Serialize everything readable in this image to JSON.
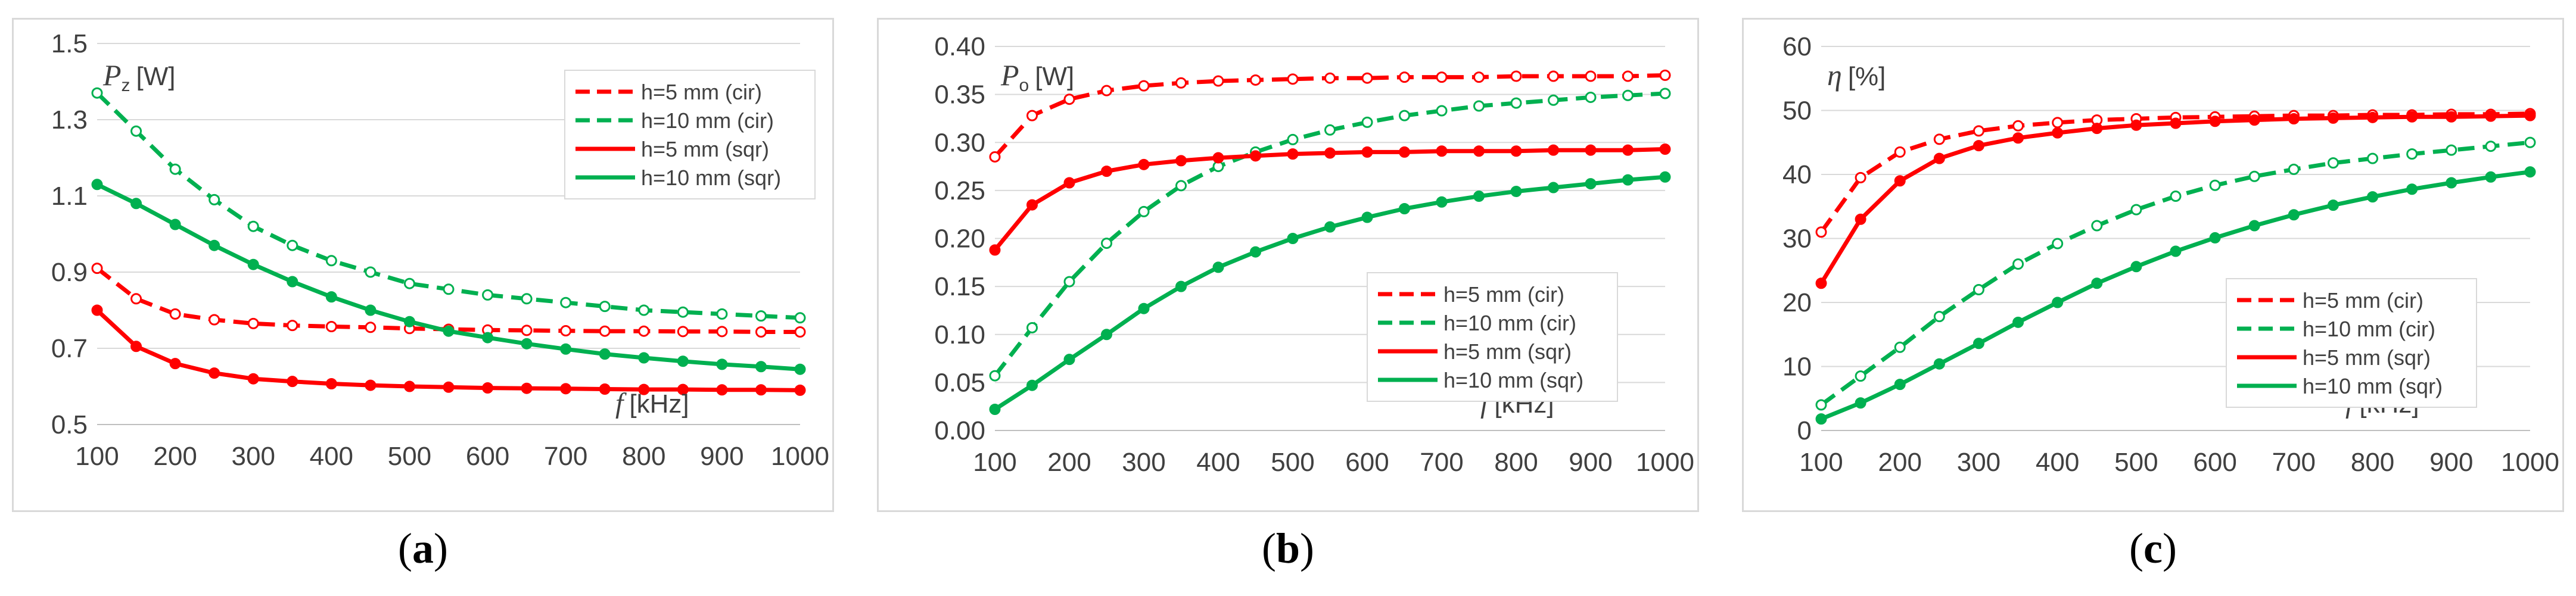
{
  "chart_data": [
    {
      "type": "line",
      "panel_label": "a",
      "ylabel_symbol": "P",
      "ylabel_sub": "z",
      "ylabel_unit": "[W]",
      "xlabel_symbol": "f",
      "xlabel_unit": "[kHz]",
      "x": [
        100,
        150,
        200,
        250,
        300,
        350,
        400,
        450,
        500,
        550,
        600,
        650,
        700,
        750,
        800,
        850,
        900,
        950,
        1000
      ],
      "xticks": [
        100,
        200,
        300,
        400,
        500,
        600,
        700,
        800,
        900,
        1000
      ],
      "yticks": [
        "0.5",
        "0.7",
        "0.9",
        "1.1",
        "1.3",
        "1.5"
      ],
      "ylim": [
        0.5,
        1.5
      ],
      "legend_position": "top-right",
      "series": [
        {
          "name": "h=5 mm (cir)",
          "color": "#ff0000",
          "style": "dashed",
          "marker": "open",
          "values": [
            0.91,
            0.83,
            0.79,
            0.775,
            0.765,
            0.76,
            0.757,
            0.755,
            0.752,
            0.75,
            0.748,
            0.747,
            0.746,
            0.745,
            0.745,
            0.744,
            0.744,
            0.743,
            0.743
          ]
        },
        {
          "name": "h=10 mm (cir)",
          "color": "#00b050",
          "style": "dashed",
          "marker": "open",
          "values": [
            1.37,
            1.27,
            1.17,
            1.09,
            1.02,
            0.97,
            0.93,
            0.9,
            0.87,
            0.855,
            0.84,
            0.83,
            0.82,
            0.81,
            0.8,
            0.795,
            0.79,
            0.785,
            0.78
          ]
        },
        {
          "name": "h=5 mm (sqr)",
          "color": "#ff0000",
          "style": "solid",
          "marker": "filled",
          "values": [
            0.8,
            0.705,
            0.66,
            0.635,
            0.62,
            0.613,
            0.607,
            0.603,
            0.6,
            0.598,
            0.596,
            0.595,
            0.594,
            0.593,
            0.592,
            0.592,
            0.591,
            0.591,
            0.59
          ]
        },
        {
          "name": "h=10 mm (sqr)",
          "color": "#00b050",
          "style": "solid",
          "marker": "filled",
          "values": [
            1.13,
            1.08,
            1.025,
            0.97,
            0.92,
            0.875,
            0.835,
            0.8,
            0.77,
            0.745,
            0.728,
            0.712,
            0.698,
            0.685,
            0.675,
            0.666,
            0.658,
            0.652,
            0.645
          ]
        }
      ]
    },
    {
      "type": "line",
      "panel_label": "b",
      "ylabel_symbol": "P",
      "ylabel_sub": "o",
      "ylabel_unit": "[W]",
      "xlabel_symbol": "f",
      "xlabel_unit": "[kHz]",
      "x": [
        100,
        150,
        200,
        250,
        300,
        350,
        400,
        450,
        500,
        550,
        600,
        650,
        700,
        750,
        800,
        850,
        900,
        950,
        1000
      ],
      "xticks": [
        100,
        200,
        300,
        400,
        500,
        600,
        700,
        800,
        900,
        1000
      ],
      "yticks": [
        "0.00",
        "0.05",
        "0.10",
        "0.15",
        "0.20",
        "0.25",
        "0.30",
        "0.35",
        "0.40"
      ],
      "ylim": [
        0,
        0.4
      ],
      "legend_position": "bottom-right",
      "series": [
        {
          "name": "h=5 mm (cir)",
          "color": "#ff0000",
          "style": "dashed",
          "marker": "open",
          "values": [
            0.285,
            0.328,
            0.345,
            0.354,
            0.359,
            0.362,
            0.364,
            0.365,
            0.366,
            0.367,
            0.367,
            0.368,
            0.368,
            0.368,
            0.369,
            0.369,
            0.369,
            0.369,
            0.37
          ]
        },
        {
          "name": "h=10 mm (cir)",
          "color": "#00b050",
          "style": "dashed",
          "marker": "open",
          "values": [
            0.057,
            0.107,
            0.155,
            0.195,
            0.228,
            0.255,
            0.275,
            0.29,
            0.303,
            0.313,
            0.321,
            0.328,
            0.333,
            0.338,
            0.341,
            0.344,
            0.347,
            0.349,
            0.351
          ]
        },
        {
          "name": "h=5 mm (sqr)",
          "color": "#ff0000",
          "style": "solid",
          "marker": "filled",
          "values": [
            0.188,
            0.235,
            0.258,
            0.27,
            0.277,
            0.281,
            0.284,
            0.286,
            0.288,
            0.289,
            0.29,
            0.29,
            0.291,
            0.291,
            0.291,
            0.292,
            0.292,
            0.292,
            0.293
          ]
        },
        {
          "name": "h=10 mm (sqr)",
          "color": "#00b050",
          "style": "solid",
          "marker": "filled",
          "values": [
            0.022,
            0.047,
            0.074,
            0.1,
            0.127,
            0.15,
            0.17,
            0.186,
            0.2,
            0.212,
            0.222,
            0.231,
            0.238,
            0.244,
            0.249,
            0.253,
            0.257,
            0.261,
            0.264
          ]
        }
      ]
    },
    {
      "type": "line",
      "panel_label": "c",
      "ylabel_symbol": "η",
      "ylabel_sub": "",
      "ylabel_unit": "[%]",
      "xlabel_symbol": "f",
      "xlabel_unit": "[kHz]",
      "x": [
        100,
        150,
        200,
        250,
        300,
        350,
        400,
        450,
        500,
        550,
        600,
        650,
        700,
        750,
        800,
        850,
        900,
        950,
        1000
      ],
      "xticks": [
        100,
        200,
        300,
        400,
        500,
        600,
        700,
        800,
        900,
        1000
      ],
      "yticks": [
        "0",
        "10",
        "20",
        "30",
        "40",
        "50",
        "60"
      ],
      "ylim": [
        0,
        60
      ],
      "legend_position": "bottom-right",
      "series": [
        {
          "name": "h=5 mm (cir)",
          "color": "#ff0000",
          "style": "dashed",
          "marker": "open",
          "values": [
            31,
            39.5,
            43.5,
            45.5,
            46.8,
            47.6,
            48.1,
            48.5,
            48.7,
            48.9,
            49,
            49.1,
            49.2,
            49.2,
            49.3,
            49.3,
            49.4,
            49.4,
            49.5
          ]
        },
        {
          "name": "h=10 mm (cir)",
          "color": "#00b050",
          "style": "dashed",
          "marker": "open",
          "values": [
            4,
            8.5,
            13,
            17.8,
            22,
            26,
            29.2,
            32,
            34.5,
            36.6,
            38.3,
            39.7,
            40.8,
            41.8,
            42.5,
            43.2,
            43.8,
            44.4,
            45
          ]
        },
        {
          "name": "h=5 mm (sqr)",
          "color": "#ff0000",
          "style": "solid",
          "marker": "filled",
          "values": [
            23,
            33,
            39,
            42.5,
            44.5,
            45.7,
            46.5,
            47.2,
            47.7,
            48,
            48.3,
            48.5,
            48.7,
            48.8,
            48.9,
            49,
            49,
            49.1,
            49.2
          ]
        },
        {
          "name": "h=10 mm (sqr)",
          "color": "#00b050",
          "style": "solid",
          "marker": "filled",
          "values": [
            1.8,
            4.3,
            7.2,
            10.4,
            13.6,
            16.9,
            20,
            23,
            25.6,
            28,
            30.1,
            32,
            33.7,
            35.2,
            36.5,
            37.7,
            38.7,
            39.6,
            40.4
          ]
        }
      ]
    }
  ]
}
